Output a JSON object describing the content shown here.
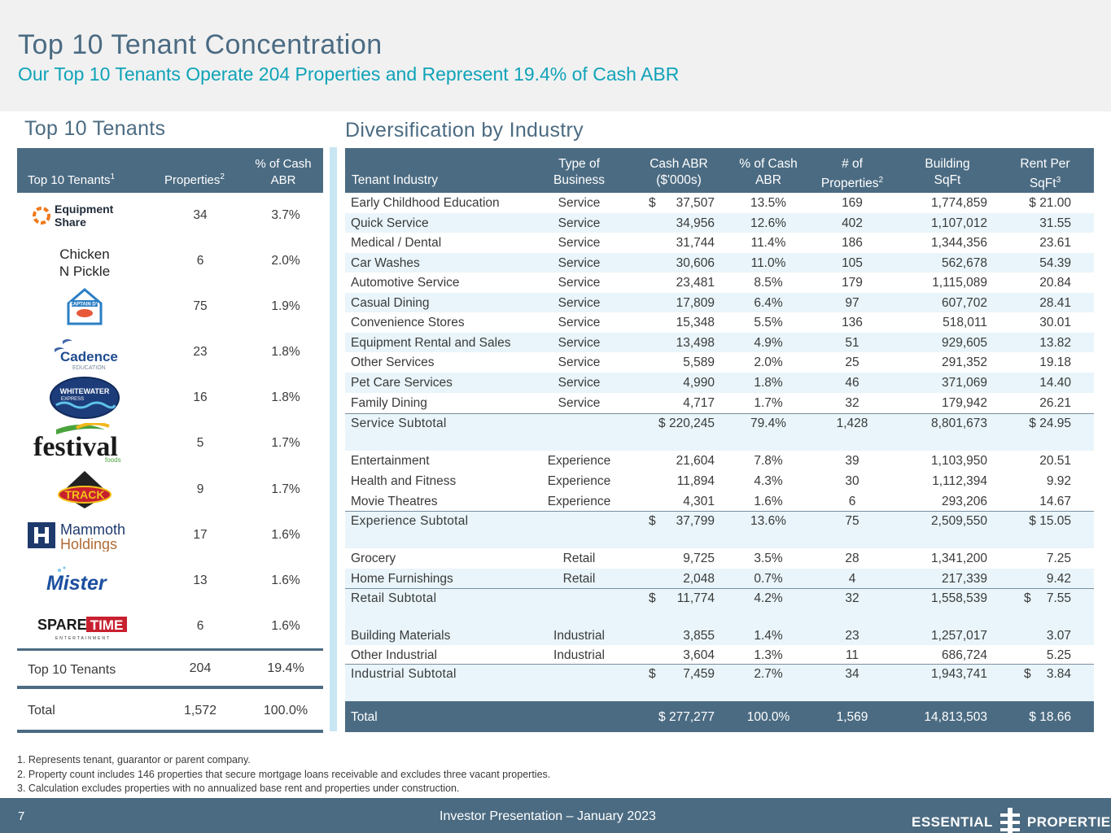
{
  "header": {
    "title": "Top 10 Tenant Concentration",
    "subtitle": "Our Top 10 Tenants Operate 204 Properties and Represent 19.4% of Cash ABR"
  },
  "left": {
    "section_title": "Top 10 Tenants",
    "columns": {
      "tenants": "Top 10 Tenants",
      "tenants_sup": "1",
      "properties": "Properties",
      "properties_sup": "2",
      "pct_line1": "% of Cash",
      "pct_line2": "ABR"
    },
    "rows": [
      {
        "logo": "Equipment Share",
        "logo_l1": "Equipment",
        "logo_l2": "Share",
        "properties": "34",
        "pct": "3.7%"
      },
      {
        "logo": "Chicken N Pickle",
        "logo_l1": "Chicken",
        "logo_l2": "N Pickle",
        "properties": "6",
        "pct": "2.0%"
      },
      {
        "logo": "Captain D's",
        "logo_l1": "CAPTAIN D's",
        "properties": "75",
        "pct": "1.9%"
      },
      {
        "logo": "Cadence Education",
        "logo_l1": "Cadence",
        "logo_l2": "EDUCATION",
        "properties": "23",
        "pct": "1.8%"
      },
      {
        "logo": "Whitewater Express",
        "logo_l1": "WHITEWATER",
        "logo_l2": "EXPRESS",
        "properties": "16",
        "pct": "1.8%"
      },
      {
        "logo": "Festival Foods",
        "logo_l1": "festival",
        "logo_l2": "foods",
        "properties": "5",
        "pct": "1.7%"
      },
      {
        "logo": "Track Family Fun Parks",
        "logo_l1": "TRACK",
        "properties": "9",
        "pct": "1.7%"
      },
      {
        "logo": "Mammoth Holdings",
        "logo_l1": "Mammoth",
        "logo_l2": "Holdings",
        "properties": "17",
        "pct": "1.6%"
      },
      {
        "logo": "Mister Car Wash",
        "logo_l1": "Mister",
        "properties": "13",
        "pct": "1.6%"
      },
      {
        "logo": "Spare Time Entertainment",
        "logo_l1": "SPARE",
        "logo_l2": "TIME",
        "logo_l3": "ENTERTAINMENT",
        "properties": "6",
        "pct": "1.6%"
      }
    ],
    "top10": {
      "label": "Top 10 Tenants",
      "properties": "204",
      "pct": "19.4%"
    },
    "total": {
      "label": "Total",
      "properties": "1,572",
      "pct": "100.0%"
    }
  },
  "right": {
    "section_title": "Diversification by Industry",
    "columns": {
      "industry": "Tenant Industry",
      "type_l1": "Type of",
      "type_l2": "Business",
      "abr_l1": "Cash ABR",
      "abr_l2": "($'000s)",
      "pct_l1": "% of Cash",
      "pct_l2": "ABR",
      "count_l1": "# of",
      "count_l2": "Properties",
      "count_sup": "2",
      "sqft_l1": "Building",
      "sqft_l2": "SqFt",
      "rent_l1": "Rent Per",
      "rent_l2": "SqFt",
      "rent_sup": "3"
    },
    "rows": [
      {
        "industry": "Early Childhood Education",
        "type": "Service",
        "abr": "37,507",
        "pct": "13.5%",
        "count": "169",
        "sqft": "1,774,859",
        "rent": "21.00"
      },
      {
        "industry": "Quick Service",
        "type": "Service",
        "abr": "34,956",
        "pct": "12.6%",
        "count": "402",
        "sqft": "1,107,012",
        "rent": "31.55"
      },
      {
        "industry": "Medical / Dental",
        "type": "Service",
        "abr": "31,744",
        "pct": "11.4%",
        "count": "186",
        "sqft": "1,344,356",
        "rent": "23.61"
      },
      {
        "industry": "Car Washes",
        "type": "Service",
        "abr": "30,606",
        "pct": "11.0%",
        "count": "105",
        "sqft": "562,678",
        "rent": "54.39"
      },
      {
        "industry": "Automotive Service",
        "type": "Service",
        "abr": "23,481",
        "pct": "8.5%",
        "count": "179",
        "sqft": "1,115,089",
        "rent": "20.84"
      },
      {
        "industry": "Casual Dining",
        "type": "Service",
        "abr": "17,809",
        "pct": "6.4%",
        "count": "97",
        "sqft": "607,702",
        "rent": "28.41"
      },
      {
        "industry": "Convenience Stores",
        "type": "Service",
        "abr": "15,348",
        "pct": "5.5%",
        "count": "136",
        "sqft": "518,011",
        "rent": "30.01"
      },
      {
        "industry": "Equipment Rental and Sales",
        "type": "Service",
        "abr": "13,498",
        "pct": "4.9%",
        "count": "51",
        "sqft": "929,605",
        "rent": "13.82"
      },
      {
        "industry": "Other Services",
        "type": "Service",
        "abr": "5,589",
        "pct": "2.0%",
        "count": "25",
        "sqft": "291,352",
        "rent": "19.18"
      },
      {
        "industry": "Pet Care Services",
        "type": "Service",
        "abr": "4,990",
        "pct": "1.8%",
        "count": "46",
        "sqft": "371,069",
        "rent": "14.40"
      },
      {
        "industry": "Family Dining",
        "type": "Service",
        "abr": "4,717",
        "pct": "1.7%",
        "count": "32",
        "sqft": "179,942",
        "rent": "26.21"
      },
      {
        "industry": "Service Subtotal",
        "type": "",
        "abr": "220,245",
        "pct": "79.4%",
        "count": "1,428",
        "sqft": "8,801,673",
        "rent": "24.95"
      },
      {
        "industry": "Entertainment",
        "type": "Experience",
        "abr": "21,604",
        "pct": "7.8%",
        "count": "39",
        "sqft": "1,103,950",
        "rent": "20.51"
      },
      {
        "industry": "Health and Fitness",
        "type": "Experience",
        "abr": "11,894",
        "pct": "4.3%",
        "count": "30",
        "sqft": "1,112,394",
        "rent": "9.92"
      },
      {
        "industry": "Movie Theatres",
        "type": "Experience",
        "abr": "4,301",
        "pct": "1.6%",
        "count": "6",
        "sqft": "293,206",
        "rent": "14.67"
      },
      {
        "industry": "Experience Subtotal",
        "type": "",
        "abr": "37,799",
        "pct": "13.6%",
        "count": "75",
        "sqft": "2,509,550",
        "rent": "15.05"
      },
      {
        "industry": "Grocery",
        "type": "Retail",
        "abr": "9,725",
        "pct": "3.5%",
        "count": "28",
        "sqft": "1,341,200",
        "rent": "7.25"
      },
      {
        "industry": "Home Furnishings",
        "type": "Retail",
        "abr": "2,048",
        "pct": "0.7%",
        "count": "4",
        "sqft": "217,339",
        "rent": "9.42"
      },
      {
        "industry": "Retail Subtotal",
        "type": "",
        "abr": "11,774",
        "pct": "4.2%",
        "count": "32",
        "sqft": "1,558,539",
        "rent": "7.55"
      },
      {
        "industry": "Building Materials",
        "type": "Industrial",
        "abr": "3,855",
        "pct": "1.4%",
        "count": "23",
        "sqft": "1,257,017",
        "rent": "3.07"
      },
      {
        "industry": "Other Industrial",
        "type": "Industrial",
        "abr": "3,604",
        "pct": "1.3%",
        "count": "11",
        "sqft": "686,724",
        "rent": "5.25"
      },
      {
        "industry": "Industrial Subtotal",
        "type": "",
        "abr": "7,459",
        "pct": "2.7%",
        "count": "34",
        "sqft": "1,943,741",
        "rent": "3.84"
      },
      {
        "industry": "Total",
        "type": "",
        "abr": "277,277",
        "pct": "100.0%",
        "count": "1,569",
        "sqft": "14,813,503",
        "rent": "18.66"
      }
    ],
    "currency": "$"
  },
  "footnotes": [
    "1. Represents tenant, guarantor or parent company.",
    "2. Property count includes 146 properties that secure mortgage loans receivable and excludes three vacant properties.",
    "3. Calculation excludes properties with no annualized base rent and properties under construction."
  ],
  "footer": {
    "page": "7",
    "center": "Investor Presentation – January 2023",
    "brand_left": "ESSENTIAL",
    "brand_right": "PROPERTIES"
  },
  "colors": {
    "navy": "#4b6b82",
    "teal": "#0fa3b8",
    "stripe": "#e9f5fa"
  }
}
